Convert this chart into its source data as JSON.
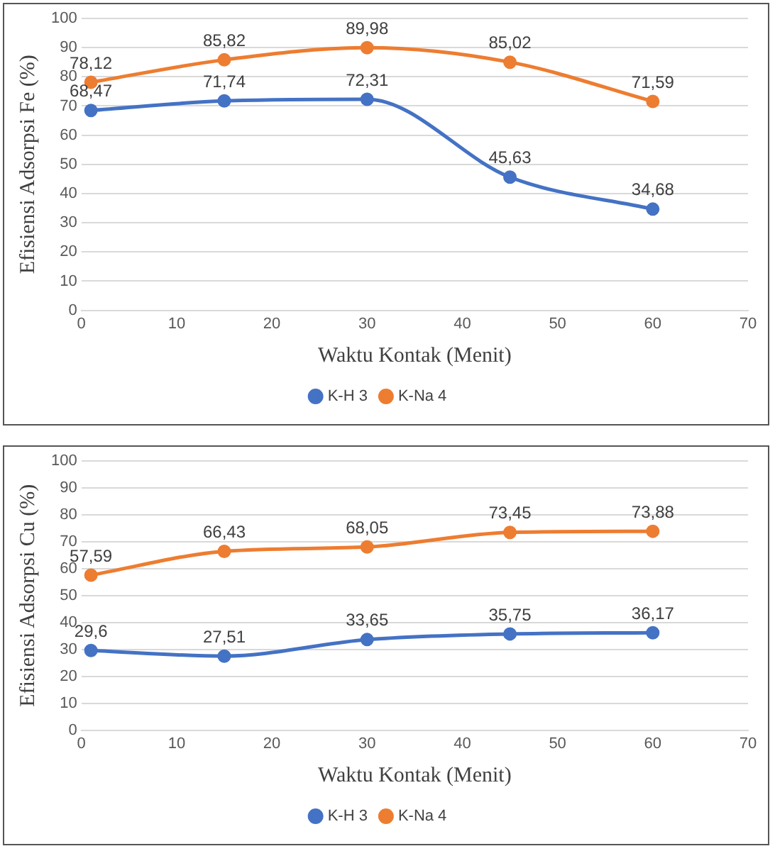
{
  "chart_data": [
    {
      "type": "line",
      "xlabel": "Waktu Kontak (Menit)",
      "ylabel": "Efisiensi Adsorpsi Fe (%)",
      "x": [
        1,
        15,
        30,
        45,
        60
      ],
      "xlim": [
        0,
        70
      ],
      "xticks": [
        0,
        10,
        20,
        30,
        40,
        50,
        60,
        70
      ],
      "ylim": [
        0,
        100
      ],
      "yticks": [
        0,
        10,
        20,
        30,
        40,
        50,
        60,
        70,
        80,
        90,
        100
      ],
      "grid": "y",
      "legend": "bottom",
      "marker": "circle",
      "line_style": "solid",
      "series": [
        {
          "name": "K-H 3",
          "color": "#4472c4",
          "values": [
            68.47,
            71.74,
            72.31,
            45.63,
            34.68
          ],
          "value_labels": [
            "68,47",
            "71,74",
            "72,31",
            "45,63",
            "34,68"
          ]
        },
        {
          "name": "K-Na 4",
          "color": "#ed7d31",
          "values": [
            78.12,
            85.82,
            89.98,
            85.02,
            71.59
          ],
          "value_labels": [
            "78,12",
            "85,82",
            "89,98",
            "85,02",
            "71,59"
          ]
        }
      ]
    },
    {
      "type": "line",
      "xlabel": "Waktu Kontak (Menit)",
      "ylabel": "Efisiensi Adsorpsi Cu (%)",
      "x": [
        1,
        15,
        30,
        45,
        60
      ],
      "xlim": [
        0,
        70
      ],
      "xticks": [
        0,
        10,
        20,
        30,
        40,
        50,
        60,
        70
      ],
      "ylim": [
        0,
        100
      ],
      "yticks": [
        0,
        10,
        20,
        30,
        40,
        50,
        60,
        70,
        80,
        90,
        100
      ],
      "grid": "y",
      "legend": "bottom",
      "marker": "circle",
      "line_style": "solid",
      "series": [
        {
          "name": "K-H 3",
          "color": "#4472c4",
          "values": [
            29.6,
            27.51,
            33.65,
            35.75,
            36.17
          ],
          "value_labels": [
            "29,6",
            "27,51",
            "33,65",
            "35,75",
            "36,17"
          ]
        },
        {
          "name": "K-Na 4",
          "color": "#ed7d31",
          "values": [
            57.59,
            66.43,
            68.05,
            73.45,
            73.88
          ],
          "value_labels": [
            "57,59",
            "66,43",
            "68,05",
            "73,45",
            "73,88"
          ]
        }
      ]
    }
  ]
}
